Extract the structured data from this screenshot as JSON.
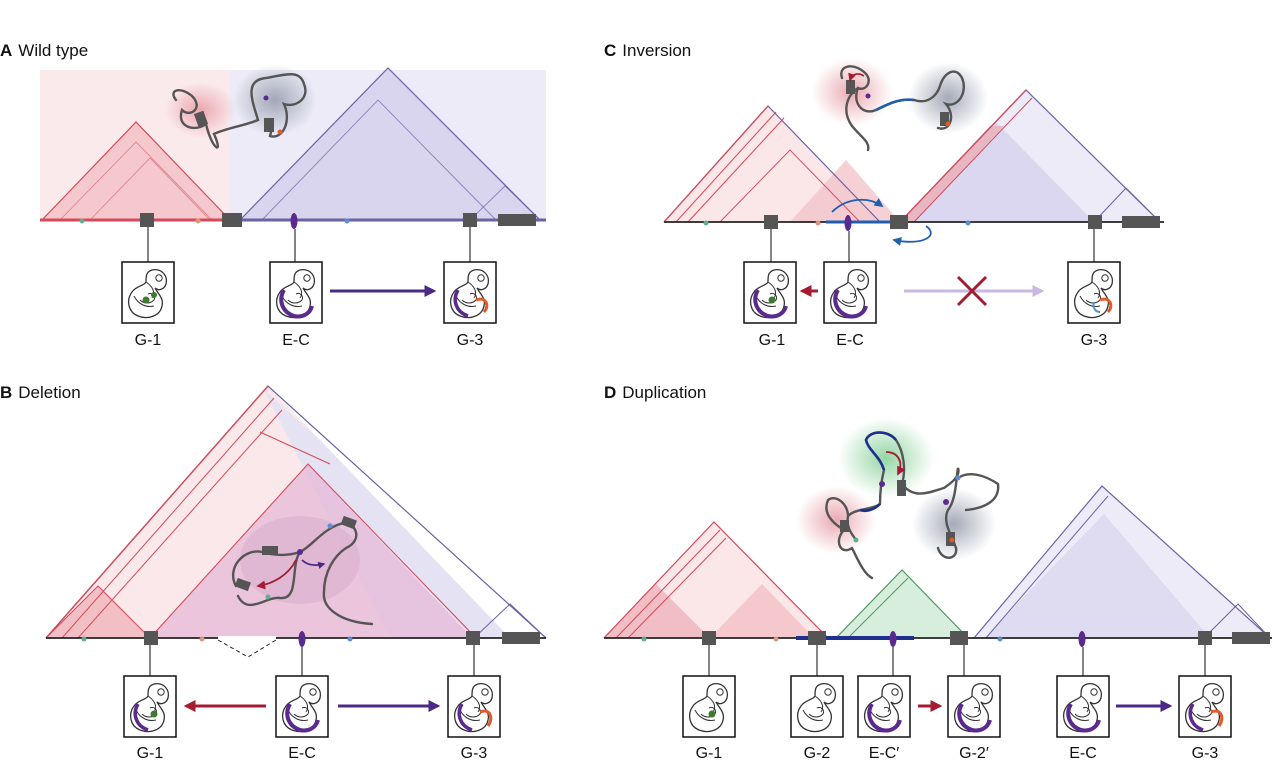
{
  "colors": {
    "red_tad": "#d44a5a",
    "blue_tad": "#6a62a6",
    "green_tad": "#4f9a63",
    "arrow_red": "#a51c30",
    "arrow_purple": "#4b2a87",
    "arrow_faded": "#c9b9e0",
    "cross": "#a51c30",
    "inversion_blue": "#1f5fae",
    "dup_blue": "#1f2f8f",
    "ec_purple": "#5b2a8e",
    "boundary": "#555555"
  },
  "panels": [
    {
      "letter": "A",
      "title": "Wild type",
      "genes": [
        "G-1",
        "E-C",
        "G-3"
      ]
    },
    {
      "letter": "B",
      "title": "Deletion",
      "genes": [
        "G-1",
        "E-C",
        "G-3"
      ]
    },
    {
      "letter": "C",
      "title": "Inversion",
      "genes": [
        "G-1",
        "E-C",
        "G-3"
      ]
    },
    {
      "letter": "D",
      "title": "Duplication",
      "genes": [
        "G-1",
        "G-2",
        "E-C′",
        "G-2′",
        "E-C",
        "G-3"
      ]
    }
  ]
}
